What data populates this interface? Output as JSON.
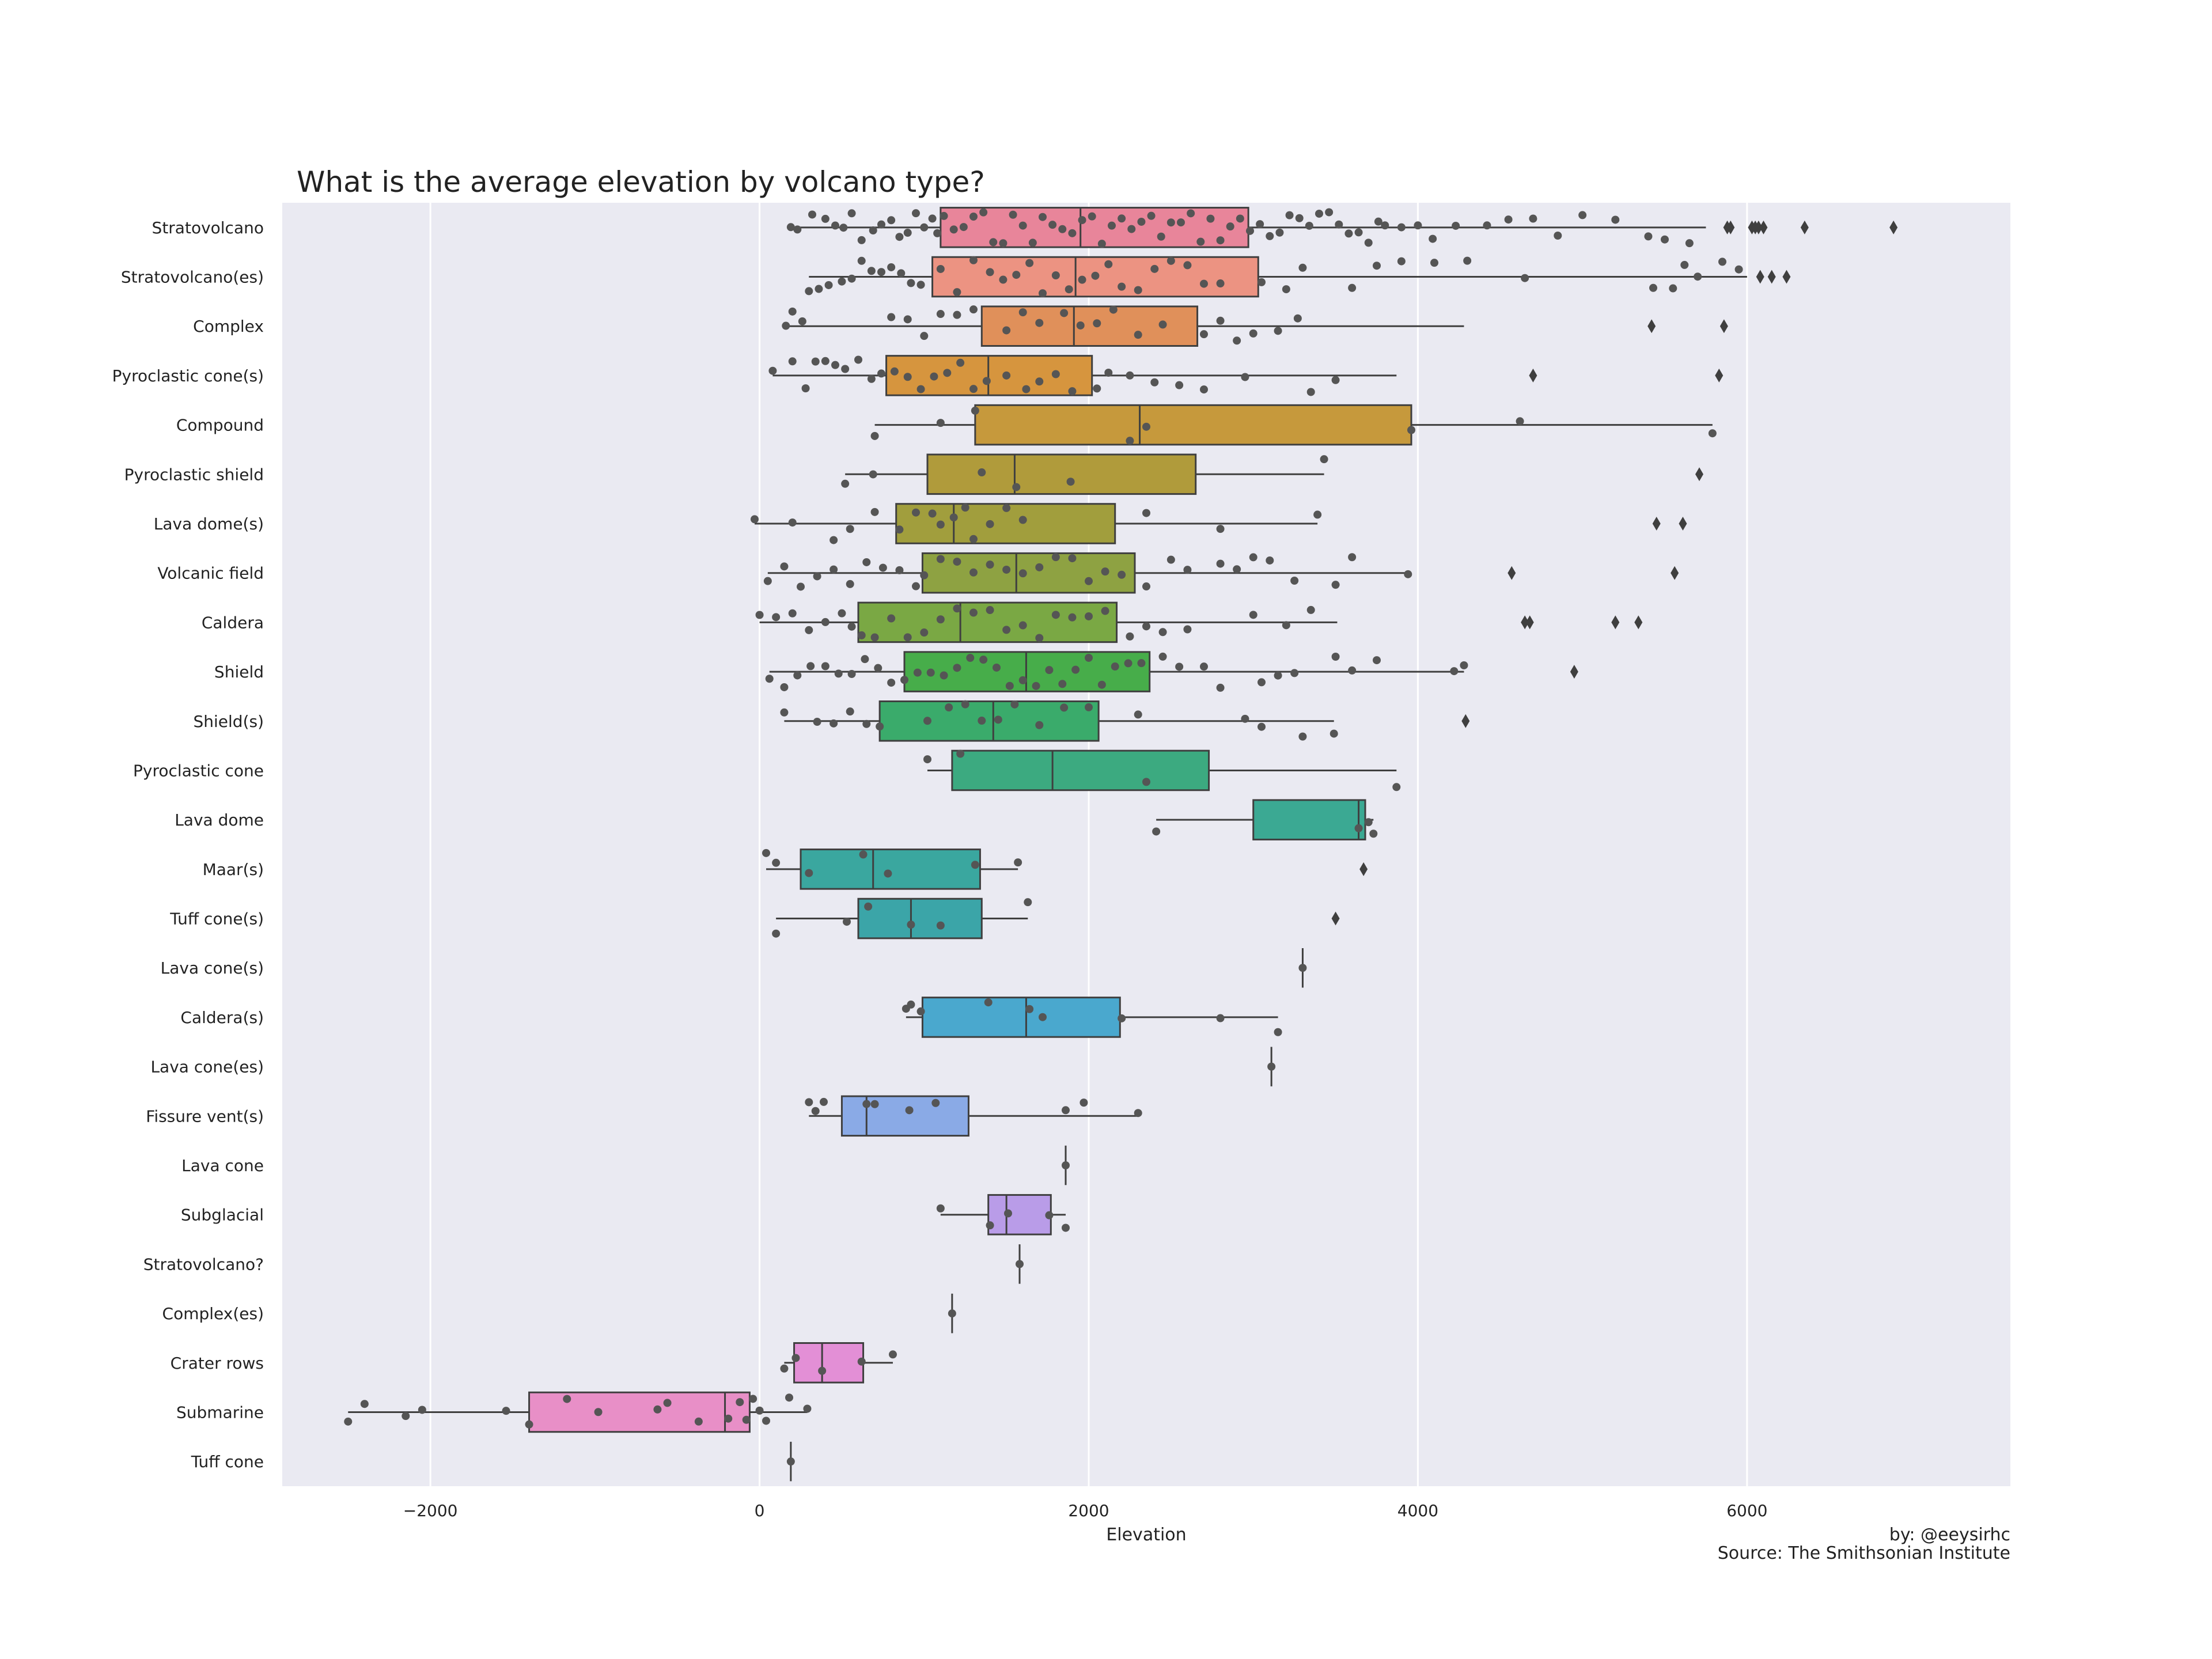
{
  "chart_data": {
    "type": "box",
    "title": "What is the average elevation by volcano type?",
    "xlabel": "Elevation",
    "ylabel": "",
    "xlim": [
      -2900,
      7600
    ],
    "xticks": [
      -2000,
      0,
      2000,
      4000,
      6000
    ],
    "xtick_labels": [
      "−2000",
      "0",
      "2000",
      "4000",
      "6000"
    ],
    "grid": "vertical",
    "credit": "by: @eeysirhc",
    "source": "Source: The Smithsonian Institute",
    "categories": [
      {
        "name": "Stratovolcano",
        "color": "#e8859a",
        "min": 190,
        "q1": 1100,
        "median": 1950,
        "q3": 2970,
        "max": 5750,
        "outliers": [
          5880,
          5900,
          6030,
          6050,
          6070,
          6100,
          6350,
          6890
        ],
        "points": [
          190,
          230,
          320,
          400,
          460,
          510,
          560,
          620,
          690,
          740,
          800,
          850,
          900,
          950,
          1000,
          1050,
          1080,
          1120,
          1180,
          1240,
          1300,
          1360,
          1420,
          1480,
          1540,
          1600,
          1660,
          1720,
          1780,
          1840,
          1900,
          1960,
          2020,
          2080,
          2140,
          2200,
          2260,
          2320,
          2380,
          2440,
          2500,
          2560,
          2620,
          2680,
          2740,
          2800,
          2860,
          2920,
          2980,
          3040,
          3100,
          3160,
          3220,
          3280,
          3340,
          3400,
          3460,
          3520,
          3580,
          3640,
          3700,
          3760,
          3800,
          3900,
          4000,
          4090,
          4230,
          4420,
          4550,
          4700,
          4850,
          5000,
          5200,
          5400,
          5500,
          5650
        ]
      },
      {
        "name": "Stratovolcano(es)",
        "color": "#ec9382",
        "min": 300,
        "q1": 1050,
        "median": 1920,
        "q3": 3030,
        "max": 6000,
        "outliers": [
          6080,
          6150,
          6240
        ],
        "points": [
          300,
          360,
          420,
          500,
          560,
          620,
          680,
          740,
          800,
          860,
          920,
          980,
          1100,
          1200,
          1300,
          1400,
          1480,
          1560,
          1640,
          1720,
          1800,
          1880,
          1960,
          2040,
          2120,
          2200,
          2300,
          2400,
          2500,
          2600,
          2700,
          2800,
          3050,
          3200,
          3300,
          3600,
          3750,
          3900,
          4100,
          4300,
          4650,
          5430,
          5550,
          5620,
          5700,
          5850,
          5950
        ]
      },
      {
        "name": "Complex",
        "color": "#e0905a",
        "min": 160,
        "q1": 1350,
        "median": 1910,
        "q3": 2660,
        "max": 4280,
        "outliers": [
          5420,
          5860
        ],
        "points": [
          160,
          200,
          260,
          800,
          900,
          1000,
          1100,
          1200,
          1300,
          1500,
          1600,
          1700,
          1850,
          1950,
          2050,
          2150,
          2300,
          2450,
          2700,
          2800,
          2900,
          3000,
          3150,
          3270
        ]
      },
      {
        "name": "Pyroclastic cone(s)",
        "color": "#d6953e",
        "min": 80,
        "q1": 770,
        "median": 1390,
        "q3": 2020,
        "max": 3870,
        "outliers": [
          4700,
          5830
        ],
        "points": [
          80,
          200,
          280,
          340,
          400,
          460,
          520,
          600,
          680,
          740,
          820,
          900,
          980,
          1060,
          1140,
          1220,
          1300,
          1380,
          1500,
          1620,
          1700,
          1800,
          1900,
          2050,
          2120,
          2250,
          2400,
          2550,
          2700,
          2950,
          3350,
          3500
        ]
      },
      {
        "name": "Compound",
        "color": "#c6993c",
        "min": 700,
        "q1": 1310,
        "median": 2310,
        "q3": 3960,
        "max": 5790,
        "outliers": [],
        "points": [
          700,
          1100,
          1310,
          2250,
          2350,
          3960,
          4620,
          5790
        ]
      },
      {
        "name": "Pyroclastic shield",
        "color": "#b09b3b",
        "min": 520,
        "q1": 1020,
        "median": 1550,
        "q3": 2650,
        "max": 3430,
        "outliers": [
          5710
        ],
        "points": [
          520,
          690,
          1350,
          1560,
          1890,
          3430
        ]
      },
      {
        "name": "Lava dome(s)",
        "color": "#a19e3d",
        "min": -30,
        "q1": 830,
        "median": 1180,
        "q3": 2160,
        "max": 3390,
        "outliers": [
          5450,
          5610
        ],
        "points": [
          -30,
          200,
          450,
          550,
          700,
          850,
          950,
          1050,
          1100,
          1180,
          1250,
          1300,
          1400,
          1500,
          1600,
          2350,
          2800,
          3390
        ]
      },
      {
        "name": "Volcanic field",
        "color": "#8ea242",
        "min": 50,
        "q1": 990,
        "median": 1560,
        "q3": 2280,
        "max": 3940,
        "outliers": [
          4570,
          5560
        ],
        "points": [
          50,
          150,
          250,
          350,
          450,
          550,
          650,
          750,
          850,
          950,
          1000,
          1100,
          1200,
          1300,
          1400,
          1500,
          1600,
          1700,
          1800,
          1900,
          2000,
          2100,
          2200,
          2350,
          2500,
          2600,
          2800,
          2900,
          3000,
          3100,
          3250,
          3500,
          3600,
          3940
        ]
      },
      {
        "name": "Caldera",
        "color": "#7aa844",
        "min": 0,
        "q1": 600,
        "median": 1220,
        "q3": 2170,
        "max": 3510,
        "outliers": [
          4650,
          4680,
          5200,
          5340
        ],
        "points": [
          0,
          100,
          200,
          300,
          400,
          500,
          560,
          620,
          700,
          800,
          900,
          1000,
          1100,
          1200,
          1300,
          1400,
          1500,
          1600,
          1700,
          1800,
          1900,
          2000,
          2100,
          2250,
          2350,
          2450,
          2600,
          3000,
          3200,
          3350
        ]
      },
      {
        "name": "Shield",
        "color": "#47ad4a",
        "min": 60,
        "q1": 880,
        "median": 1620,
        "q3": 2370,
        "max": 4280,
        "outliers": [
          4950
        ],
        "points": [
          60,
          150,
          230,
          310,
          400,
          480,
          560,
          640,
          720,
          800,
          880,
          960,
          1040,
          1120,
          1200,
          1280,
          1360,
          1440,
          1520,
          1600,
          1680,
          1760,
          1840,
          1920,
          2000,
          2080,
          2160,
          2240,
          2320,
          2450,
          2550,
          2700,
          2800,
          3050,
          3150,
          3250,
          3500,
          3600,
          3750,
          4220,
          4280
        ]
      },
      {
        "name": "Shield(s)",
        "color": "#3aab6b",
        "min": 150,
        "q1": 730,
        "median": 1420,
        "q3": 2060,
        "max": 3490,
        "outliers": [
          4290
        ],
        "points": [
          150,
          350,
          450,
          550,
          650,
          730,
          1020,
          1150,
          1250,
          1350,
          1450,
          1550,
          1700,
          1850,
          2000,
          2300,
          2950,
          3050,
          3300,
          3490
        ]
      },
      {
        "name": "Pyroclastic cone",
        "color": "#3caa80",
        "min": 1020,
        "q1": 1170,
        "median": 1780,
        "q3": 2730,
        "max": 3870,
        "outliers": [],
        "points": [
          1020,
          1220,
          2350,
          3870
        ]
      },
      {
        "name": "Lava dome",
        "color": "#3ba993",
        "min": 2410,
        "q1": 3000,
        "median": 3640,
        "q3": 3680,
        "max": 3730,
        "outliers": [],
        "points": [
          2410,
          3640,
          3700,
          3730
        ]
      },
      {
        "name": "Maar(s)",
        "color": "#3aa79f",
        "min": 40,
        "q1": 250,
        "median": 690,
        "q3": 1340,
        "max": 1570,
        "outliers": [
          3670
        ],
        "points": [
          40,
          100,
          300,
          630,
          780,
          1310,
          1570
        ]
      },
      {
        "name": "Tuff cone(s)",
        "color": "#3ba5a8",
        "min": 100,
        "q1": 600,
        "median": 920,
        "q3": 1350,
        "max": 1630,
        "outliers": [
          3500
        ],
        "points": [
          100,
          530,
          660,
          920,
          1100,
          1630
        ]
      },
      {
        "name": "Lava cone(s)",
        "color": "#3ea4b2",
        "min": 3300,
        "q1": 3300,
        "median": 3300,
        "q3": 3300,
        "max": 3300,
        "outliers": [],
        "points": [
          3300
        ]
      },
      {
        "name": "Caldera(s)",
        "color": "#4aa8ce",
        "min": 890,
        "q1": 990,
        "median": 1620,
        "q3": 2190,
        "max": 3150,
        "outliers": [],
        "points": [
          890,
          920,
          980,
          1390,
          1640,
          1720,
          2200,
          2800,
          3150
        ]
      },
      {
        "name": "Lava cone(es)",
        "color": "#55a5cf",
        "min": 3110,
        "q1": 3110,
        "median": 3110,
        "q3": 3110,
        "max": 3110,
        "outliers": [],
        "points": [
          3110
        ]
      },
      {
        "name": "Fissure vent(s)",
        "color": "#8aaae6",
        "min": 300,
        "q1": 500,
        "median": 650,
        "q3": 1270,
        "max": 2300,
        "outliers": [],
        "points": [
          300,
          340,
          390,
          650,
          700,
          910,
          1070,
          1860,
          1970,
          2300
        ]
      },
      {
        "name": "Lava cone",
        "color": "#9f9fe8",
        "min": 1860,
        "q1": 1860,
        "median": 1860,
        "q3": 1860,
        "max": 1860,
        "outliers": [],
        "points": [
          1860
        ]
      },
      {
        "name": "Subglacial",
        "color": "#b99ce8",
        "min": 1100,
        "q1": 1390,
        "median": 1500,
        "q3": 1770,
        "max": 1860,
        "outliers": [],
        "points": [
          1100,
          1400,
          1510,
          1760,
          1860
        ]
      },
      {
        "name": "Stratovolcano?",
        "color": "#c99ae0",
        "min": 1580,
        "q1": 1580,
        "median": 1580,
        "q3": 1580,
        "max": 1580,
        "outliers": [],
        "points": [
          1580
        ]
      },
      {
        "name": "Complex(es)",
        "color": "#d896d8",
        "min": 1170,
        "q1": 1170,
        "median": 1170,
        "q3": 1170,
        "max": 1170,
        "outliers": [],
        "points": [
          1170
        ]
      },
      {
        "name": "Crater rows",
        "color": "#e38fd6",
        "min": 150,
        "q1": 210,
        "median": 380,
        "q3": 630,
        "max": 810,
        "outliers": [],
        "points": [
          150,
          220,
          380,
          620,
          810
        ]
      },
      {
        "name": "Submarine",
        "color": "#e88fc7",
        "min": -2500,
        "q1": -1400,
        "median": -210,
        "q3": -60,
        "max": 290,
        "outliers": [],
        "points": [
          -2500,
          -2400,
          -2150,
          -2050,
          -1540,
          -1400,
          -1170,
          -980,
          -620,
          -560,
          -370,
          -190,
          -120,
          -80,
          -40,
          0,
          40,
          180,
          290
        ]
      },
      {
        "name": "Tuff cone",
        "color": "#e88fc7",
        "min": 190,
        "q1": 190,
        "median": 190,
        "q3": 190,
        "max": 190,
        "outliers": [],
        "points": [
          190
        ]
      }
    ]
  }
}
